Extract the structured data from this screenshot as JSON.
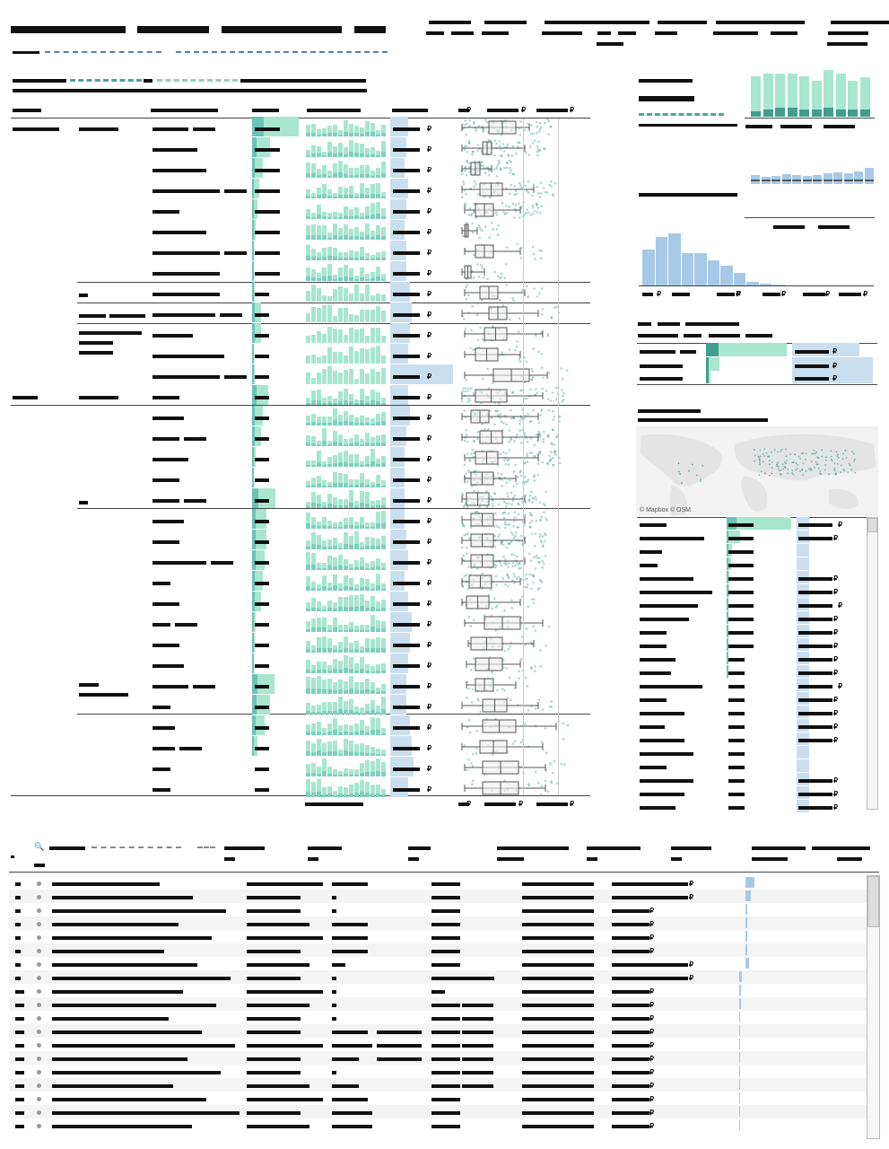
{
  "map": {
    "attribution": "© Mapbox © OSM"
  },
  "currency_symbol": "₽",
  "colors": {
    "teal_light": "#a8e6cf",
    "teal_dark": "#3f9e8c",
    "blue_light": "#c9dff0",
    "blue_mid": "#8fbde0",
    "blue_bar": "#a6c9e8",
    "point": "#4da59a"
  },
  "icons": {
    "search": "search-icon",
    "row_dot": "dot-icon"
  }
}
